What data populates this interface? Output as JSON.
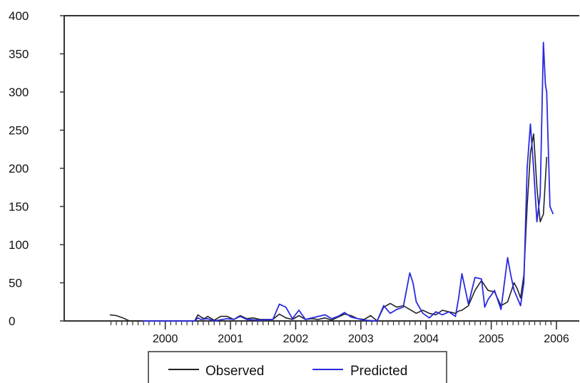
{
  "chart_data": {
    "type": "line",
    "title": "",
    "xlabel": "",
    "ylabel": "",
    "ylim": [
      0,
      400
    ],
    "y_ticks": [
      "0",
      "50",
      "100",
      "150",
      "200",
      "250",
      "300",
      "350",
      "400"
    ],
    "x_tick_labels": [
      "2000",
      "2001",
      "2002",
      "2003",
      "2004",
      "2005",
      "2006"
    ],
    "grid": false,
    "legend": "bottom-center",
    "series": [
      {
        "name": "Observed",
        "color": "#222222",
        "points": [
          [
            1999.7,
            8
          ],
          [
            1999.8,
            7
          ],
          [
            1999.9,
            4
          ],
          [
            2000.0,
            0
          ],
          [
            2000.5,
            0
          ],
          [
            2001.0,
            0
          ],
          [
            2001.05,
            8
          ],
          [
            2001.1,
            5
          ],
          [
            2001.15,
            3
          ],
          [
            2001.2,
            6
          ],
          [
            2001.3,
            1
          ],
          [
            2001.4,
            6
          ],
          [
            2001.5,
            6
          ],
          [
            2001.6,
            2
          ],
          [
            2001.7,
            7
          ],
          [
            2001.8,
            3
          ],
          [
            2001.9,
            4
          ],
          [
            2002.0,
            2
          ],
          [
            2002.2,
            2
          ],
          [
            2002.3,
            9
          ],
          [
            2002.4,
            4
          ],
          [
            2002.5,
            2
          ],
          [
            2002.6,
            7
          ],
          [
            2002.7,
            2
          ],
          [
            2002.8,
            3
          ],
          [
            2002.9,
            2
          ],
          [
            2003.0,
            4
          ],
          [
            2003.1,
            1
          ],
          [
            2003.2,
            5
          ],
          [
            2003.3,
            9
          ],
          [
            2003.4,
            7
          ],
          [
            2003.5,
            3
          ],
          [
            2003.6,
            2
          ],
          [
            2003.7,
            7
          ],
          [
            2003.8,
            0
          ],
          [
            2003.9,
            18
          ],
          [
            2004.0,
            23
          ],
          [
            2004.1,
            18
          ],
          [
            2004.2,
            20
          ],
          [
            2004.3,
            15
          ],
          [
            2004.4,
            10
          ],
          [
            2004.5,
            14
          ],
          [
            2004.6,
            10
          ],
          [
            2004.7,
            8
          ],
          [
            2004.8,
            14
          ],
          [
            2004.9,
            12
          ],
          [
            2005.0,
            10
          ],
          [
            2005.05,
            13
          ],
          [
            2005.1,
            14
          ],
          [
            2005.2,
            20
          ],
          [
            2005.3,
            40
          ],
          [
            2005.4,
            53
          ],
          [
            2005.5,
            40
          ],
          [
            2005.6,
            38
          ],
          [
            2005.7,
            20
          ],
          [
            2005.8,
            25
          ],
          [
            2005.9,
            50
          ],
          [
            2005.95,
            42
          ],
          [
            2006.0,
            30
          ],
          [
            2006.05,
            60
          ],
          [
            2006.1,
            150
          ],
          [
            2006.15,
            220
          ],
          [
            2006.2,
            245
          ],
          [
            2006.25,
            175
          ],
          [
            2006.3,
            130
          ],
          [
            2006.35,
            140
          ],
          [
            2006.4,
            215
          ]
        ]
      },
      {
        "name": "Predicted",
        "color": "#2a2ae0",
        "points": [
          [
            2000.2,
            0
          ],
          [
            2001.0,
            0
          ],
          [
            2001.05,
            4
          ],
          [
            2001.1,
            2
          ],
          [
            2001.2,
            3
          ],
          [
            2001.3,
            0
          ],
          [
            2001.5,
            3
          ],
          [
            2001.6,
            2
          ],
          [
            2001.7,
            6
          ],
          [
            2001.8,
            2
          ],
          [
            2002.0,
            1
          ],
          [
            2002.2,
            2
          ],
          [
            2002.3,
            22
          ],
          [
            2002.4,
            18
          ],
          [
            2002.5,
            3
          ],
          [
            2002.6,
            14
          ],
          [
            2002.7,
            2
          ],
          [
            2003.0,
            8
          ],
          [
            2003.1,
            3
          ],
          [
            2003.2,
            6
          ],
          [
            2003.3,
            11
          ],
          [
            2003.4,
            5
          ],
          [
            2003.5,
            3
          ],
          [
            2003.6,
            1
          ],
          [
            2003.8,
            0
          ],
          [
            2003.9,
            20
          ],
          [
            2004.0,
            10
          ],
          [
            2004.1,
            15
          ],
          [
            2004.2,
            18
          ],
          [
            2004.3,
            63
          ],
          [
            2004.35,
            50
          ],
          [
            2004.4,
            25
          ],
          [
            2004.5,
            10
          ],
          [
            2004.6,
            4
          ],
          [
            2004.7,
            12
          ],
          [
            2004.8,
            8
          ],
          [
            2004.9,
            12
          ],
          [
            2005.0,
            6
          ],
          [
            2005.05,
            30
          ],
          [
            2005.1,
            62
          ],
          [
            2005.2,
            22
          ],
          [
            2005.3,
            57
          ],
          [
            2005.4,
            55
          ],
          [
            2005.45,
            18
          ],
          [
            2005.5,
            28
          ],
          [
            2005.6,
            40
          ],
          [
            2005.7,
            15
          ],
          [
            2005.8,
            83
          ],
          [
            2005.85,
            60
          ],
          [
            2005.9,
            40
          ],
          [
            2005.95,
            30
          ],
          [
            2006.0,
            20
          ],
          [
            2006.05,
            50
          ],
          [
            2006.1,
            200
          ],
          [
            2006.15,
            258
          ],
          [
            2006.2,
            200
          ],
          [
            2006.25,
            130
          ],
          [
            2006.3,
            165
          ],
          [
            2006.35,
            365
          ],
          [
            2006.38,
            310
          ],
          [
            2006.4,
            300
          ],
          [
            2006.45,
            150
          ],
          [
            2006.5,
            140
          ]
        ]
      }
    ]
  }
}
